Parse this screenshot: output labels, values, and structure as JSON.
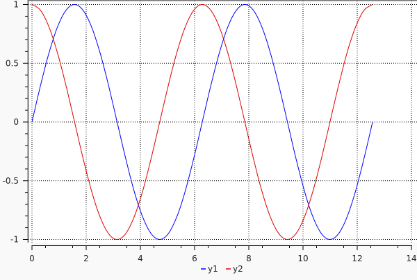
{
  "chart_data": {
    "type": "line",
    "title": "",
    "xlabel": "",
    "ylabel": "",
    "xlim": [
      0,
      14
    ],
    "ylim": [
      -1,
      1
    ],
    "xticks": [
      "0",
      "2",
      "4",
      "6",
      "8",
      "10",
      "12",
      "14"
    ],
    "yticks": [
      "-1",
      "-0.5",
      "0",
      "0.5",
      "1"
    ],
    "grid": true,
    "legend": "bottom-center",
    "x": [
      0,
      0.314,
      0.628,
      0.942,
      1.257,
      1.571,
      1.885,
      2.199,
      2.513,
      2.827,
      3.142,
      3.456,
      3.77,
      4.084,
      4.398,
      4.712,
      5.027,
      5.341,
      5.655,
      5.969,
      6.283,
      6.597,
      6.912,
      7.226,
      7.54,
      7.854,
      8.168,
      8.482,
      8.796,
      9.111,
      9.425,
      9.739,
      10.053,
      10.367,
      10.681,
      10.996,
      11.31,
      11.624,
      11.938,
      12.252,
      12.566
    ],
    "series": [
      {
        "name": "y1",
        "color": "#0000ff",
        "values": [
          0,
          0.309,
          0.588,
          0.809,
          0.951,
          1,
          0.951,
          0.809,
          0.588,
          0.309,
          0,
          -0.309,
          -0.588,
          -0.809,
          -0.951,
          -1,
          -0.951,
          -0.809,
          -0.588,
          -0.309,
          0,
          0.309,
          0.588,
          0.809,
          0.951,
          1,
          0.951,
          0.809,
          0.588,
          0.309,
          0,
          -0.309,
          -0.588,
          -0.809,
          -0.951,
          -1,
          -0.951,
          -0.809,
          -0.588,
          -0.309,
          0
        ]
      },
      {
        "name": "y2",
        "color": "#dd0000",
        "values": [
          1,
          0.951,
          0.809,
          0.588,
          0.309,
          0,
          -0.309,
          -0.588,
          -0.809,
          -0.951,
          -1,
          -0.951,
          -0.809,
          -0.588,
          -0.309,
          0,
          0.309,
          0.588,
          0.809,
          0.951,
          1,
          0.951,
          0.809,
          0.588,
          0.309,
          0,
          -0.309,
          -0.588,
          -0.809,
          -0.951,
          -1,
          -0.951,
          -0.809,
          -0.588,
          -0.309,
          0,
          0.309,
          0.588,
          0.809,
          0.951,
          1
        ]
      }
    ]
  }
}
